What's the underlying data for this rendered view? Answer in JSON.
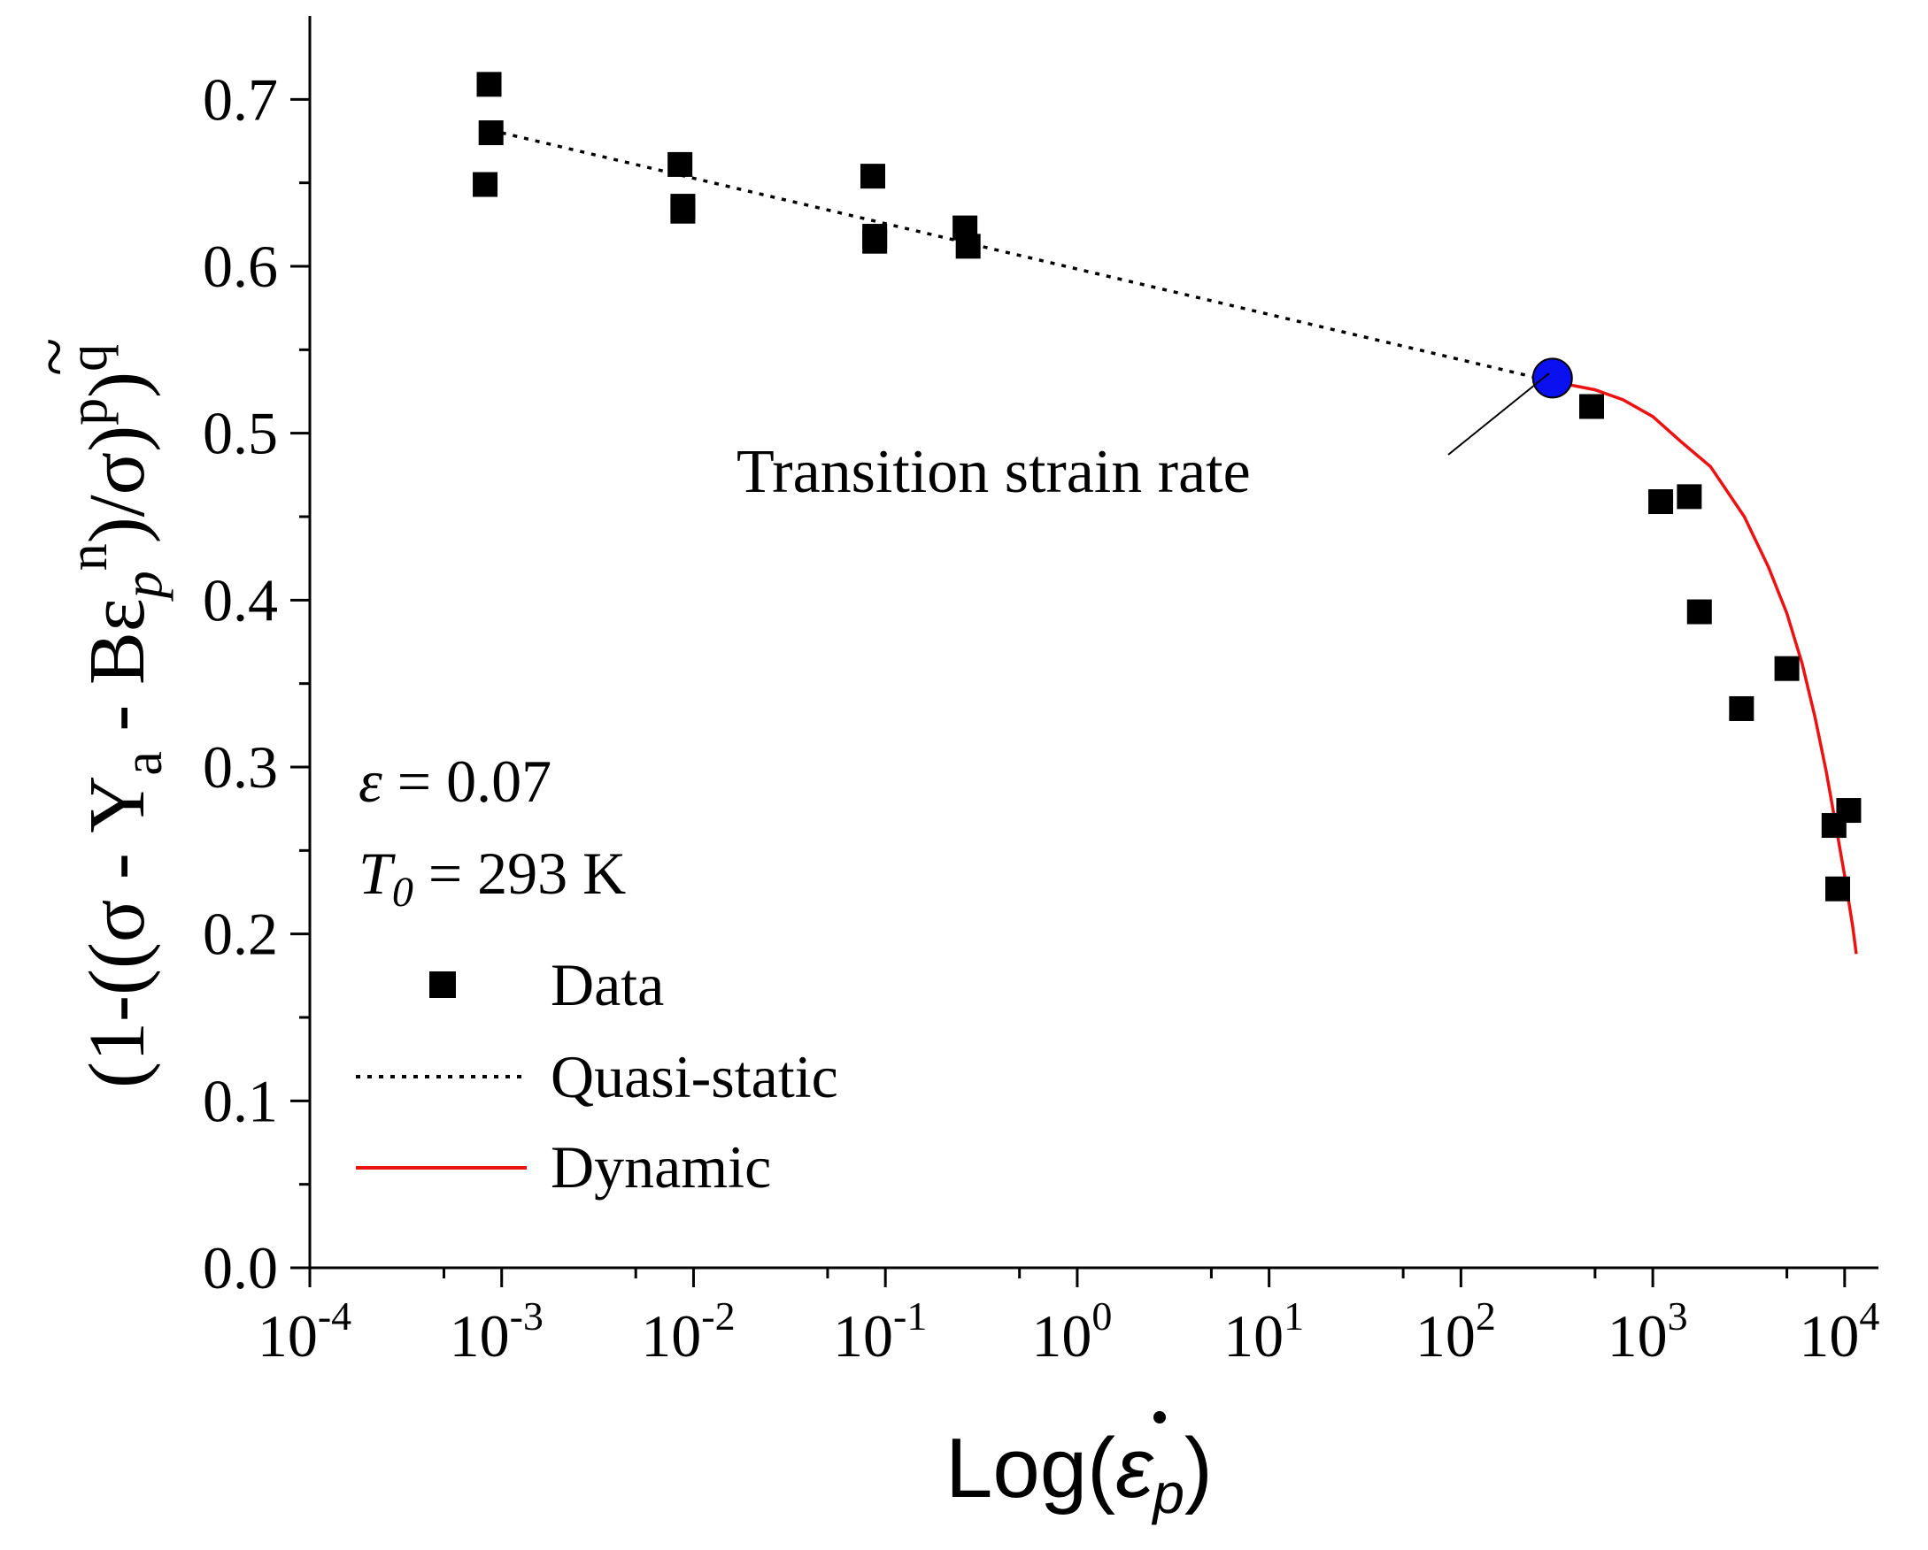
{
  "chart_data": {
    "type": "scatter",
    "x_scale": "log",
    "xlim": [
      0.0001,
      15000
    ],
    "ylim": [
      0.0,
      0.75
    ],
    "xlabel": {
      "prefix": "Log(",
      "symbol": "ε",
      "subscript": "p",
      "suffix": ")"
    },
    "ylabel": {
      "parts": [
        "(1-((σ - Y",
        "a",
        " - Bε",
        "p",
        "n",
        ")/σ)",
        "p",
        ")",
        "q"
      ],
      "tilde": "~"
    },
    "x_ticks": [
      {
        "value": 0.0001,
        "base": "10",
        "exp": "-4"
      },
      {
        "value": 0.001,
        "base": "10",
        "exp": "-3"
      },
      {
        "value": 0.01,
        "base": "10",
        "exp": "-2"
      },
      {
        "value": 0.1,
        "base": "10",
        "exp": "-1"
      },
      {
        "value": 1,
        "base": "10",
        "exp": "0"
      },
      {
        "value": 10,
        "base": "10",
        "exp": "1"
      },
      {
        "value": 100,
        "base": "10",
        "exp": "2"
      },
      {
        "value": 1000,
        "base": "10",
        "exp": "3"
      },
      {
        "value": 10000,
        "base": "10",
        "exp": "4"
      }
    ],
    "y_ticks": [
      {
        "value": 0.0,
        "label": "0.0"
      },
      {
        "value": 0.1,
        "label": "0.1"
      },
      {
        "value": 0.2,
        "label": "0.2"
      },
      {
        "value": 0.3,
        "label": "0.3"
      },
      {
        "value": 0.4,
        "label": "0.4"
      },
      {
        "value": 0.5,
        "label": "0.5"
      },
      {
        "value": 0.6,
        "label": "0.6"
      },
      {
        "value": 0.7,
        "label": "0.7"
      }
    ],
    "series": [
      {
        "name": "Data",
        "kind": "markers",
        "marker": "square",
        "color": "#000000",
        "points": [
          {
            "x": 0.00086,
            "y": 0.709
          },
          {
            "x": 0.00088,
            "y": 0.68
          },
          {
            "x": 0.00082,
            "y": 0.649
          },
          {
            "x": 0.0085,
            "y": 0.661
          },
          {
            "x": 0.0088,
            "y": 0.636
          },
          {
            "x": 0.0088,
            "y": 0.633
          },
          {
            "x": 0.086,
            "y": 0.654
          },
          {
            "x": 0.088,
            "y": 0.618
          },
          {
            "x": 0.088,
            "y": 0.615
          },
          {
            "x": 0.26,
            "y": 0.623
          },
          {
            "x": 0.27,
            "y": 0.612
          },
          {
            "x": 480,
            "y": 0.516
          },
          {
            "x": 1100,
            "y": 0.459
          },
          {
            "x": 1550,
            "y": 0.462
          },
          {
            "x": 1750,
            "y": 0.393
          },
          {
            "x": 2900,
            "y": 0.335
          },
          {
            "x": 5000,
            "y": 0.359
          },
          {
            "x": 8800,
            "y": 0.265
          },
          {
            "x": 10500,
            "y": 0.274
          },
          {
            "x": 9200,
            "y": 0.227
          }
        ]
      },
      {
        "name": "Quasi-static",
        "kind": "line",
        "style": "dotted",
        "color": "#000000",
        "points": [
          {
            "x": 0.001,
            "y": 0.68
          },
          {
            "x": 300,
            "y": 0.531
          }
        ]
      },
      {
        "name": "Dynamic",
        "kind": "line",
        "style": "solid",
        "color": "#ee1111",
        "points": [
          {
            "x": 300,
            "y": 0.531
          },
          {
            "x": 500,
            "y": 0.526
          },
          {
            "x": 700,
            "y": 0.52
          },
          {
            "x": 1000,
            "y": 0.51
          },
          {
            "x": 1400,
            "y": 0.495
          },
          {
            "x": 2000,
            "y": 0.48
          },
          {
            "x": 3000,
            "y": 0.45
          },
          {
            "x": 4000,
            "y": 0.42
          },
          {
            "x": 5000,
            "y": 0.392
          },
          {
            "x": 6000,
            "y": 0.362
          },
          {
            "x": 7000,
            "y": 0.33
          },
          {
            "x": 8000,
            "y": 0.298
          },
          {
            "x": 9000,
            "y": 0.265
          },
          {
            "x": 10000,
            "y": 0.235
          },
          {
            "x": 11000,
            "y": 0.205
          },
          {
            "x": 11500,
            "y": 0.188
          }
        ]
      }
    ],
    "transition_point": {
      "x": 300,
      "y": 0.533,
      "color": "#0a10f0"
    },
    "annotations": [
      {
        "id": "transition",
        "text": "Transition strain rate"
      }
    ],
    "conditions": [
      {
        "symbol": "ε",
        "subscript": "",
        "text": " = 0.07"
      },
      {
        "symbol": "T",
        "subscript": "0",
        "text": " = 293 K"
      }
    ],
    "legend": {
      "position": "bottom-left",
      "entries": [
        {
          "label": "Data"
        },
        {
          "label": "Quasi-static"
        },
        {
          "label": "Dynamic"
        }
      ]
    }
  }
}
